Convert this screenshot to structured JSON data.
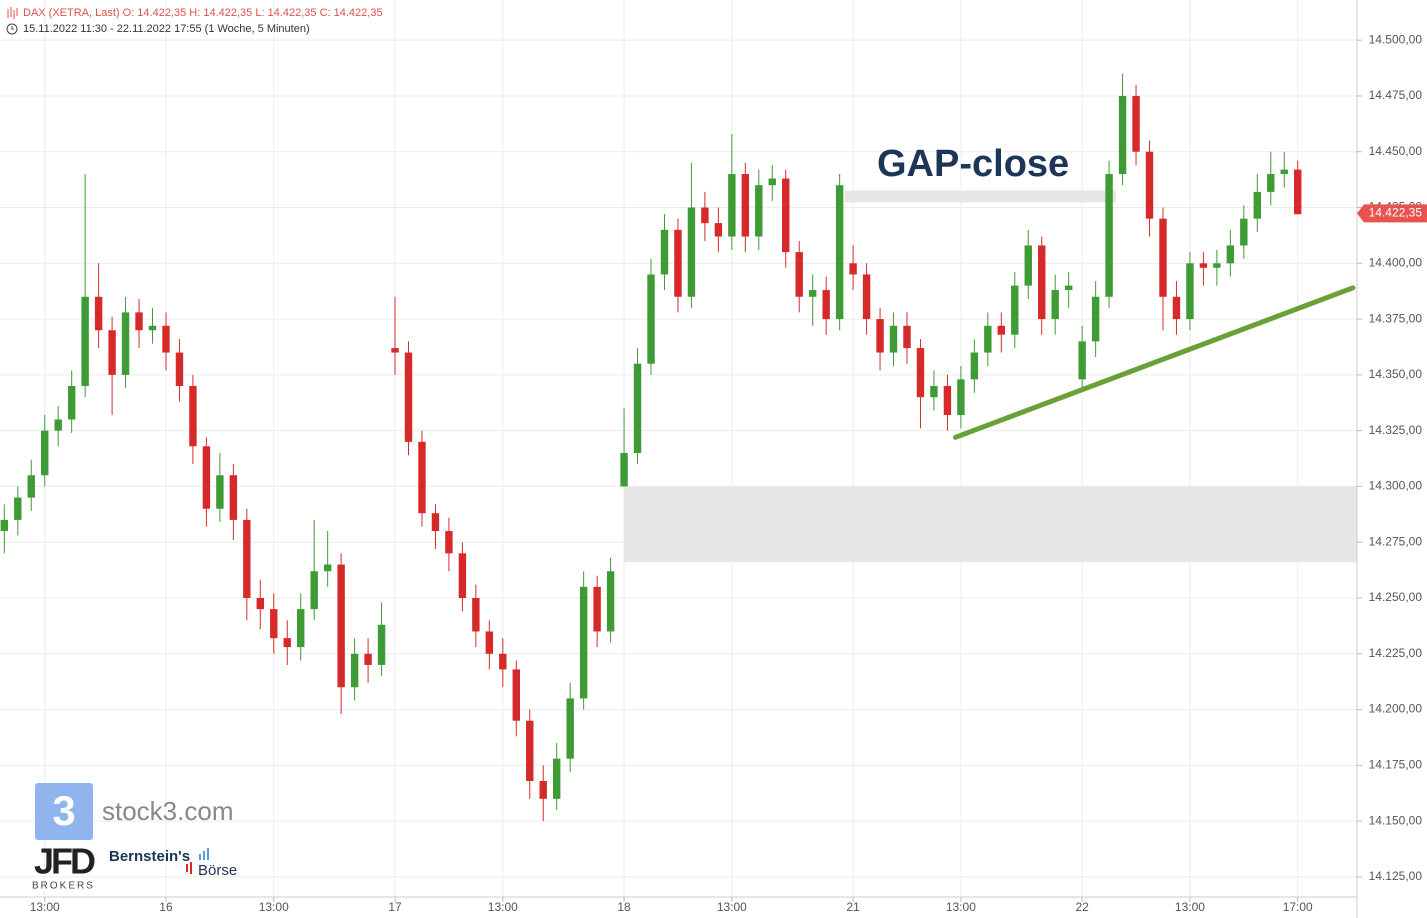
{
  "chart_data": {
    "type": "candlestick",
    "header": {
      "title": "DAX (XETRA, Last)  O: 14.422,35  H: 14.422,35  L: 14.422,35  C: 14.422,35",
      "subtitle": "15.11.2022 11:30 - 22.11.2022 17:55   (1 Woche, 5 Minuten)"
    },
    "annotation": "GAP-close",
    "last_price": {
      "value": 14422.35,
      "label": "14.422,35"
    },
    "gap_zone": {
      "x": [
        51,
        105.4
      ],
      "y": [
        14266,
        14300
      ]
    },
    "gap_close_line": {
      "x": [
        67.4,
        87.5
      ],
      "y": 14430
    },
    "trend_line": {
      "x": [
        75.6,
        105.1
      ],
      "y": [
        14322,
        14389
      ]
    },
    "branding": {
      "stock3": "stock3.com",
      "jfd": "JFD",
      "jfd_sub": "BROKERS",
      "bernstein": "Bernstein's",
      "boerse": "Börse"
    },
    "colors": {
      "up": "#3f9b35",
      "down": "#d62a2a",
      "gap_zone": "#e6e6e6",
      "trend": "#6aa136",
      "annotation": "#1d3557",
      "last_price": "#e8524f"
    },
    "grid": true,
    "xlim": [
      4.68,
      105.4
    ],
    "xticks": [
      {
        "value": 8,
        "label": "13:00"
      },
      {
        "value": 17,
        "label": "16"
      },
      {
        "value": 25,
        "label": "13:00"
      },
      {
        "value": 34,
        "label": "17"
      },
      {
        "value": 42,
        "label": "13:00"
      },
      {
        "value": 51,
        "label": "18"
      },
      {
        "value": 59,
        "label": "13:00"
      },
      {
        "value": 68,
        "label": "21"
      },
      {
        "value": 76,
        "label": "13:00"
      },
      {
        "value": 85,
        "label": "22"
      },
      {
        "value": 93,
        "label": "13:00"
      },
      {
        "value": 101,
        "label": "17:00"
      }
    ],
    "ylim": [
      14116,
      14518
    ],
    "yticks": [
      {
        "value": 14125,
        "label": "14.125,00"
      },
      {
        "value": 14150,
        "label": "14.150,00"
      },
      {
        "value": 14175,
        "label": "14.175,00"
      },
      {
        "value": 14200,
        "label": "14.200,00"
      },
      {
        "value": 14225,
        "label": "14.225,00"
      },
      {
        "value": 14250,
        "label": "14.250,00"
      },
      {
        "value": 14275,
        "label": "14.275,00"
      },
      {
        "value": 14300,
        "label": "14.300,00"
      },
      {
        "value": 14325,
        "label": "14.325,00"
      },
      {
        "value": 14350,
        "label": "14.350,00"
      },
      {
        "value": 14375,
        "label": "14.375,00"
      },
      {
        "value": 14400,
        "label": "14.400,00"
      },
      {
        "value": 14425,
        "label": "14.425,00"
      },
      {
        "value": 14450,
        "label": "14.450,00"
      },
      {
        "value": 14475,
        "label": "14.475,00"
      },
      {
        "value": 14500,
        "label": "14.500,00"
      }
    ],
    "x": [
      5,
      6,
      7,
      8,
      9,
      10,
      11,
      12,
      13,
      14,
      15,
      16,
      17,
      18,
      19,
      20,
      21,
      22,
      23,
      24,
      25,
      26,
      27,
      28,
      29,
      30,
      31,
      32,
      33,
      34,
      35,
      36,
      37,
      38,
      39,
      40,
      41,
      42,
      43,
      44,
      45,
      46,
      47,
      48,
      49,
      50,
      51,
      52,
      53,
      54,
      55,
      56,
      57,
      58,
      59,
      60,
      61,
      62,
      63,
      64,
      65,
      66,
      67,
      68,
      69,
      70,
      71,
      72,
      73,
      74,
      75,
      76,
      77,
      78,
      79,
      80,
      81,
      82,
      83,
      84,
      85,
      86,
      87,
      88,
      89,
      90,
      91,
      92,
      93,
      94,
      95,
      96,
      97,
      98,
      99,
      100,
      101
    ],
    "open": [
      14280,
      14285,
      14295,
      14305,
      14325,
      14330,
      14345,
      14385,
      14370,
      14350,
      14378,
      14370,
      14372,
      14360,
      14345,
      14318,
      14290,
      14305,
      14285,
      14250,
      14245,
      14232,
      14228,
      14245,
      14262,
      14265,
      14210,
      14225,
      14220,
      14362,
      14360,
      14320,
      14288,
      14280,
      14270,
      14250,
      14235,
      14225,
      14218,
      14195,
      14168,
      14160,
      14178,
      14205,
      14255,
      14235,
      14300,
      14315,
      14355,
      14395,
      14415,
      14385,
      14425,
      14418,
      14412,
      14440,
      14412,
      14435,
      14438,
      14405,
      14385,
      14388,
      14375,
      14400,
      14395,
      14375,
      14360,
      14372,
      14362,
      14340,
      14345,
      14332,
      14348,
      14360,
      14372,
      14368,
      14390,
      14408,
      14375,
      14388,
      14348,
      14365,
      14385,
      14440,
      14475,
      14450,
      14420,
      14385,
      14375,
      14400,
      14398,
      14400,
      14408,
      14420,
      14432,
      14440,
      14442
    ],
    "high": [
      14292,
      14300,
      14312,
      14332,
      14336,
      14352,
      14440,
      14400,
      14376,
      14385,
      14384,
      14380,
      14378,
      14366,
      14350,
      14322,
      14315,
      14310,
      14290,
      14258,
      14252,
      14240,
      14252,
      14285,
      14280,
      14270,
      14232,
      14232,
      14248,
      14385,
      14365,
      14325,
      14292,
      14286,
      14275,
      14256,
      14240,
      14232,
      14222,
      14200,
      14175,
      14185,
      14212,
      14262,
      14260,
      14268,
      14335,
      14362,
      14402,
      14422,
      14420,
      14445,
      14432,
      14425,
      14458,
      14445,
      14442,
      14444,
      14442,
      14410,
      14395,
      14394,
      14440,
      14408,
      14400,
      14380,
      14378,
      14378,
      14366,
      14352,
      14350,
      14354,
      14366,
      14378,
      14378,
      14396,
      14415,
      14412,
      14395,
      14396,
      14372,
      14392,
      14446,
      14485,
      14480,
      14455,
      14425,
      14392,
      14405,
      14405,
      14406,
      14415,
      14426,
      14440,
      14450,
      14450,
      14446
    ],
    "low": [
      14270,
      14278,
      14289,
      14300,
      14318,
      14324,
      14340,
      14362,
      14332,
      14344,
      14362,
      14364,
      14352,
      14338,
      14310,
      14282,
      14284,
      14276,
      14240,
      14236,
      14225,
      14220,
      14222,
      14240,
      14255,
      14198,
      14204,
      14212,
      14215,
      14350,
      14314,
      14282,
      14272,
      14262,
      14244,
      14228,
      14218,
      14210,
      14188,
      14160,
      14150,
      14155,
      14172,
      14200,
      14228,
      14230,
      14300,
      14310,
      14350,
      14388,
      14378,
      14380,
      14410,
      14405,
      14406,
      14405,
      14406,
      14428,
      14398,
      14378,
      14372,
      14368,
      14370,
      14388,
      14368,
      14352,
      14354,
      14355,
      14326,
      14334,
      14325,
      14326,
      14342,
      14354,
      14360,
      14362,
      14384,
      14368,
      14368,
      14380,
      14343,
      14358,
      14380,
      14435,
      14444,
      14412,
      14370,
      14368,
      14370,
      14390,
      14390,
      14394,
      14402,
      14414,
      14426,
      14434,
      14422
    ],
    "close": [
      14285,
      14295,
      14305,
      14325,
      14330,
      14345,
      14385,
      14370,
      14350,
      14378,
      14370,
      14372,
      14360,
      14345,
      14318,
      14290,
      14305,
      14285,
      14250,
      14245,
      14232,
      14228,
      14245,
      14262,
      14265,
      14210,
      14225,
      14220,
      14238,
      14360,
      14320,
      14288,
      14280,
      14270,
      14250,
      14235,
      14225,
      14218,
      14195,
      14168,
      14160,
      14178,
      14205,
      14255,
      14235,
      14262,
      14315,
      14355,
      14395,
      14415,
      14385,
      14425,
      14418,
      14412,
      14440,
      14412,
      14435,
      14438,
      14405,
      14385,
      14388,
      14375,
      14435,
      14395,
      14375,
      14360,
      14372,
      14362,
      14340,
      14345,
      14332,
      14348,
      14360,
      14372,
      14368,
      14390,
      14408,
      14375,
      14388,
      14390,
      14365,
      14385,
      14440,
      14475,
      14450,
      14420,
      14385,
      14375,
      14400,
      14398,
      14400,
      14408,
      14420,
      14432,
      14440,
      14442,
      14422
    ]
  }
}
